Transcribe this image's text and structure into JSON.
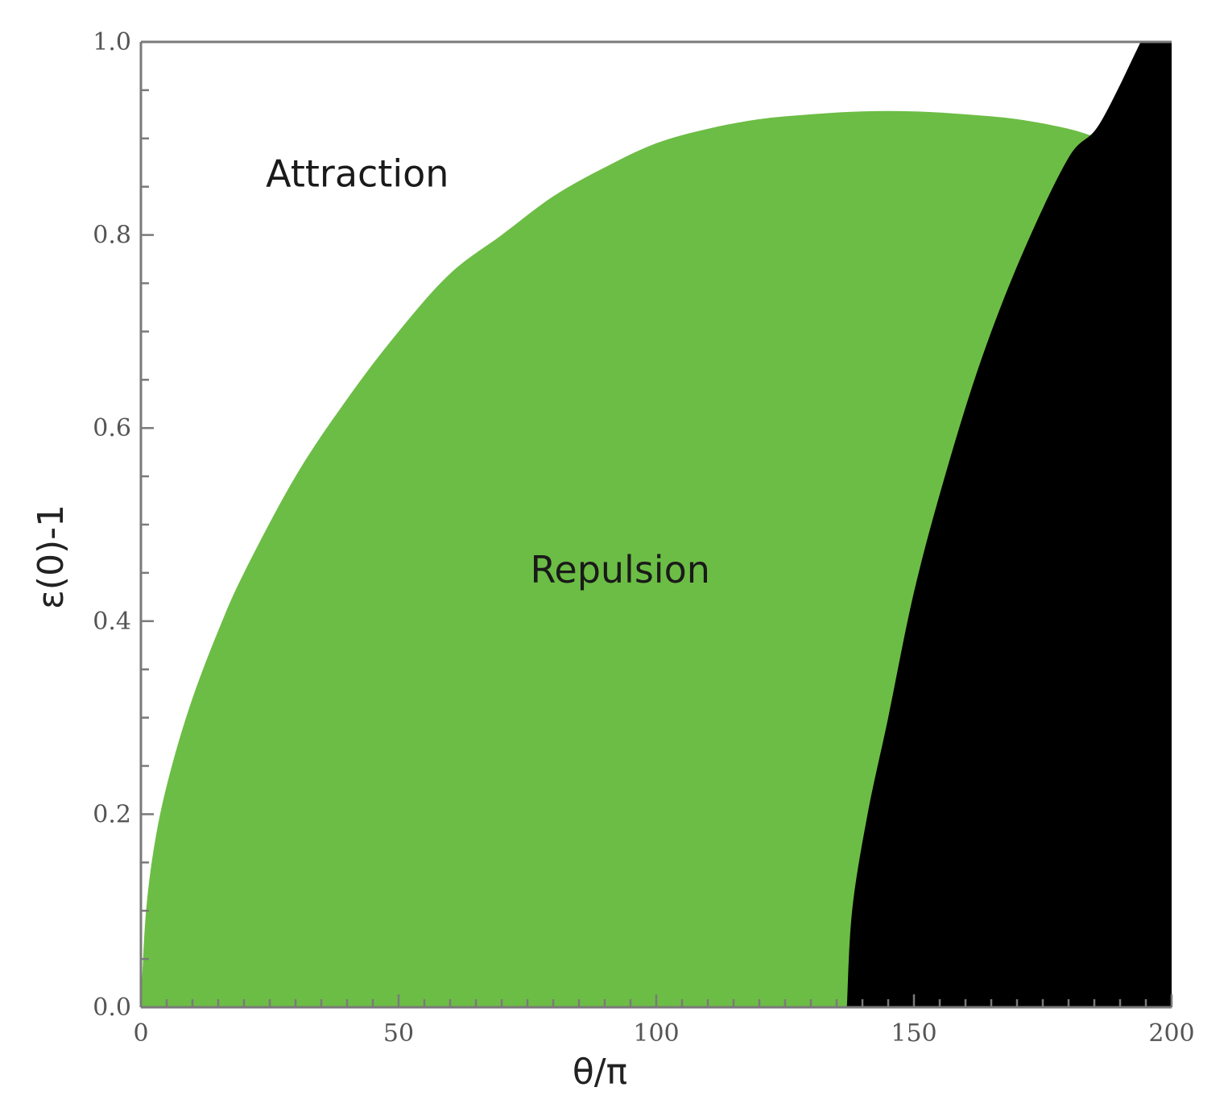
{
  "chart_data": {
    "type": "area",
    "title": "",
    "xlabel": "θ/π",
    "ylabel": "ε(0)-1",
    "xlim": [
      0,
      200
    ],
    "ylim": [
      0.0,
      1.0
    ],
    "x_ticks": [
      "0",
      "50",
      "100",
      "150",
      "200"
    ],
    "y_ticks": [
      "0.0",
      "0.2",
      "0.4",
      "0.6",
      "0.8",
      "1.0"
    ],
    "x_minor_step": 5,
    "y_minor_step": 0.05,
    "grid": false,
    "regions": [
      {
        "label": "Attraction",
        "color": "#ffffff",
        "label_at": {
          "x": 42,
          "y": 0.85
        }
      },
      {
        "label": "Repulsion",
        "color": "#6cbd45",
        "label_at": {
          "x": 93,
          "y": 0.44
        },
        "upper_boundary": [
          {
            "x": 0,
            "y": 0.0
          },
          {
            "x": 1,
            "y": 0.1
          },
          {
            "x": 3,
            "y": 0.18
          },
          {
            "x": 6,
            "y": 0.25
          },
          {
            "x": 10,
            "y": 0.32
          },
          {
            "x": 15,
            "y": 0.39
          },
          {
            "x": 20,
            "y": 0.45
          },
          {
            "x": 30,
            "y": 0.55
          },
          {
            "x": 40,
            "y": 0.63
          },
          {
            "x": 50,
            "y": 0.7
          },
          {
            "x": 60,
            "y": 0.76
          },
          {
            "x": 70,
            "y": 0.8
          },
          {
            "x": 80,
            "y": 0.84
          },
          {
            "x": 90,
            "y": 0.87
          },
          {
            "x": 100,
            "y": 0.895
          },
          {
            "x": 110,
            "y": 0.91
          },
          {
            "x": 120,
            "y": 0.92
          },
          {
            "x": 130,
            "y": 0.925
          },
          {
            "x": 140,
            "y": 0.928
          },
          {
            "x": 150,
            "y": 0.928
          },
          {
            "x": 160,
            "y": 0.925
          },
          {
            "x": 170,
            "y": 0.92
          },
          {
            "x": 180,
            "y": 0.91
          },
          {
            "x": 186,
            "y": 0.9
          }
        ]
      },
      {
        "label": "",
        "color": "#000000",
        "left_boundary": [
          {
            "x": 137,
            "y": 0.0
          },
          {
            "x": 138,
            "y": 0.1
          },
          {
            "x": 141,
            "y": 0.2
          },
          {
            "x": 145,
            "y": 0.3
          },
          {
            "x": 150,
            "y": 0.43
          },
          {
            "x": 156,
            "y": 0.55
          },
          {
            "x": 163,
            "y": 0.67
          },
          {
            "x": 171,
            "y": 0.78
          },
          {
            "x": 180,
            "y": 0.88
          },
          {
            "x": 186,
            "y": 0.915
          },
          {
            "x": 194,
            "y": 1.0
          }
        ]
      }
    ]
  }
}
